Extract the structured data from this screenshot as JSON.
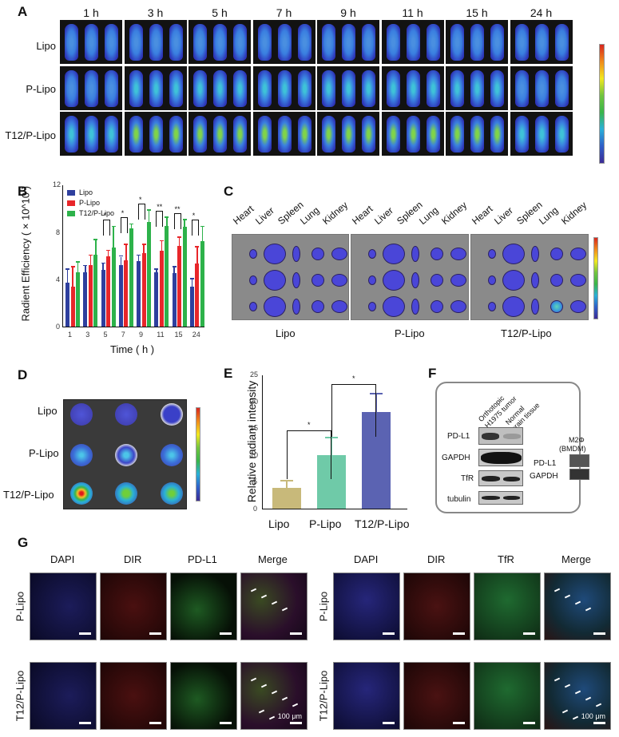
{
  "panels": {
    "A": {
      "letter": "A",
      "timepoints": [
        "1 h",
        "3 h",
        "5 h",
        "7 h",
        "9 h",
        "11 h",
        "15 h",
        "24 h"
      ],
      "groups": [
        "Lipo",
        "P-Lipo",
        "T12/P-Lipo"
      ]
    },
    "B": {
      "letter": "B"
    },
    "C": {
      "letter": "C",
      "organs": [
        "Heart",
        "Liver",
        "Spleen",
        "Lung",
        "Kidney"
      ],
      "groups": [
        "Lipo",
        "P-Lipo",
        "T12/P-Lipo"
      ]
    },
    "D": {
      "letter": "D",
      "groups": [
        "Lipo",
        "P-Lipo",
        "T12/P-Lipo"
      ]
    },
    "E": {
      "letter": "E"
    },
    "F": {
      "letter": "F",
      "lane_labels": [
        "Orthotopic",
        "H1975 tumor",
        "Normal",
        "brain tissue"
      ],
      "left_blots": [
        "PD-L1",
        "GAPDH",
        "TfR",
        "tubulin"
      ],
      "right_header": [
        "M2Φ",
        "(BMDM)"
      ],
      "right_blots": [
        "PD-L1",
        "GAPDH"
      ]
    },
    "G": {
      "letter": "G",
      "left_columns": [
        "DAPI",
        "DIR",
        "PD-L1",
        "Merge"
      ],
      "right_columns": [
        "DAPI",
        "DIR",
        "TfR",
        "Merge"
      ],
      "rows": [
        "P-Lipo",
        "T12/P-Lipo"
      ],
      "scale_label": "100 μm"
    }
  },
  "chart_data": [
    {
      "panel": "B",
      "type": "bar",
      "title": "",
      "xlabel": "Time ( h )",
      "ylabel": "Radient Efficiency ( × 10^10 )",
      "ylim": [
        0,
        12
      ],
      "yticks": [
        "0",
        "4",
        "8",
        "12"
      ],
      "categories": [
        "1",
        "3",
        "5",
        "7",
        "9",
        "11",
        "15",
        "24"
      ],
      "legend_position": "top-left",
      "series": [
        {
          "name": "Lipo",
          "color": "#2e3f9e",
          "values": [
            3.7,
            4.6,
            4.8,
            5.2,
            5.5,
            4.6,
            4.5,
            3.4
          ],
          "errors": [
            1.1,
            0.5,
            0.5,
            0.7,
            0.5,
            0.2,
            0.5,
            0.6
          ]
        },
        {
          "name": "P-Lipo",
          "color": "#e8262a",
          "values": [
            3.4,
            5.2,
            5.9,
            5.6,
            6.2,
            6.4,
            6.8,
            5.3
          ],
          "errors": [
            1.6,
            0.8,
            0.5,
            1.3,
            0.7,
            0.8,
            0.7,
            1.4
          ]
        },
        {
          "name": "T12/P-Lipo",
          "color": "#2db24a",
          "values": [
            4.6,
            6.1,
            6.7,
            8.3,
            8.8,
            8.5,
            8.4,
            7.2
          ],
          "errors": [
            0.8,
            1.2,
            1.7,
            0.3,
            1.0,
            0.7,
            0.6,
            1.2
          ]
        }
      ],
      "annotations": [
        {
          "category": "5",
          "text": "*"
        },
        {
          "category": "7",
          "text": "*"
        },
        {
          "category": "9",
          "text": "*"
        },
        {
          "category": "11",
          "text": "**"
        },
        {
          "category": "11",
          "text": "*"
        },
        {
          "category": "15",
          "text": "**"
        },
        {
          "category": "15",
          "text": "*"
        },
        {
          "category": "24",
          "text": "*"
        }
      ]
    },
    {
      "panel": "E",
      "type": "bar",
      "title": "",
      "xlabel": "",
      "ylabel": "Relative radiant intensity",
      "ylim": [
        0,
        25
      ],
      "yticks": [
        "0",
        "5",
        "10",
        "15",
        "20",
        "25"
      ],
      "categories": [
        "Lipo",
        "P-Lipo",
        "T12/P-Lipo"
      ],
      "values": [
        3.9,
        9.9,
        18.0
      ],
      "errors": [
        1.1,
        3.2,
        3.3
      ],
      "colors": [
        "#c8b97a",
        "#6fcaa8",
        "#5b63b2"
      ],
      "annotations": [
        {
          "between": [
            "Lipo",
            "P-Lipo"
          ],
          "text": "*"
        },
        {
          "between": [
            "P-Lipo",
            "T12/P-Lipo"
          ],
          "text": "*"
        }
      ]
    }
  ]
}
